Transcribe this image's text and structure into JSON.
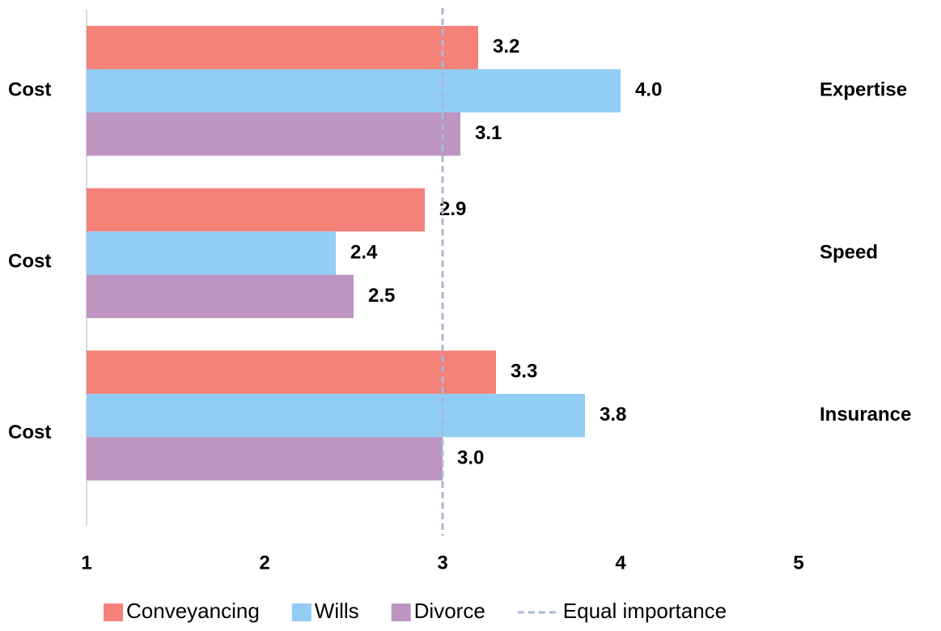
{
  "chart_data": {
    "type": "bar",
    "orientation": "horizontal",
    "categories": [
      "Cost",
      "Cost",
      "Cost"
    ],
    "categories_right": [
      "Expertise",
      "Speed",
      "Insurance"
    ],
    "series": [
      {
        "name": "Conveyancing",
        "color": "#f4817a",
        "values": [
          3.2,
          2.9,
          3.3
        ],
        "value_labels": [
          "3.2",
          "2.9",
          "3.3"
        ]
      },
      {
        "name": "Wills",
        "color": "#92cdf4",
        "values": [
          4.0,
          2.4,
          3.8
        ],
        "value_labels": [
          "4.0",
          "2.4",
          "3.8"
        ]
      },
      {
        "name": "Divorce",
        "color": "#bc95c1",
        "values": [
          3.1,
          2.5,
          3.0
        ],
        "value_labels": [
          "3.1",
          "2.5",
          "3.0"
        ]
      }
    ],
    "reference_line": {
      "name": "Equal importance",
      "value": 3,
      "color": "#a9b8d6",
      "style": "dashed"
    },
    "xlim": [
      1,
      5
    ],
    "xticks": [
      1,
      2,
      3,
      4,
      5
    ],
    "grid": false,
    "legend": "bottom"
  }
}
